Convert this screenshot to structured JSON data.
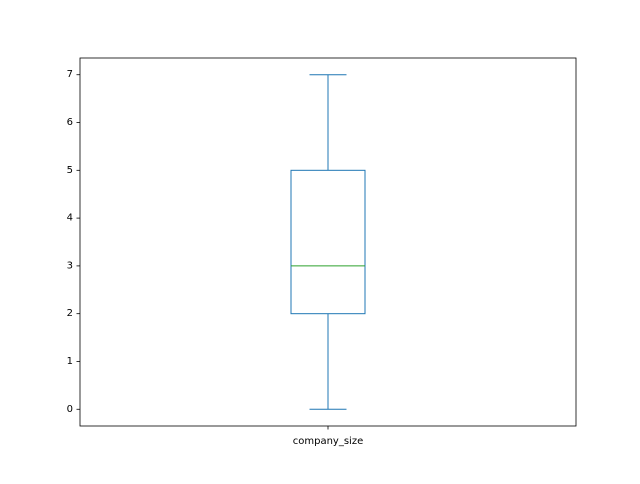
{
  "chart_data": {
    "type": "box",
    "title": "",
    "xlabel": "",
    "ylabel": "",
    "categories": [
      "company_size"
    ],
    "boxes": [
      {
        "category": "company_size",
        "whisker_low": 0,
        "q1": 2,
        "median": 3,
        "q3": 5,
        "whisker_high": 7
      }
    ],
    "ylim": [
      -0.35,
      7.35
    ],
    "yticks": [
      0,
      1,
      2,
      3,
      4,
      5,
      6,
      7
    ],
    "grid": false,
    "legend": "none",
    "colors": {
      "box": "#1f77b4",
      "median": "#2ca02c",
      "axes": "#000000"
    }
  }
}
